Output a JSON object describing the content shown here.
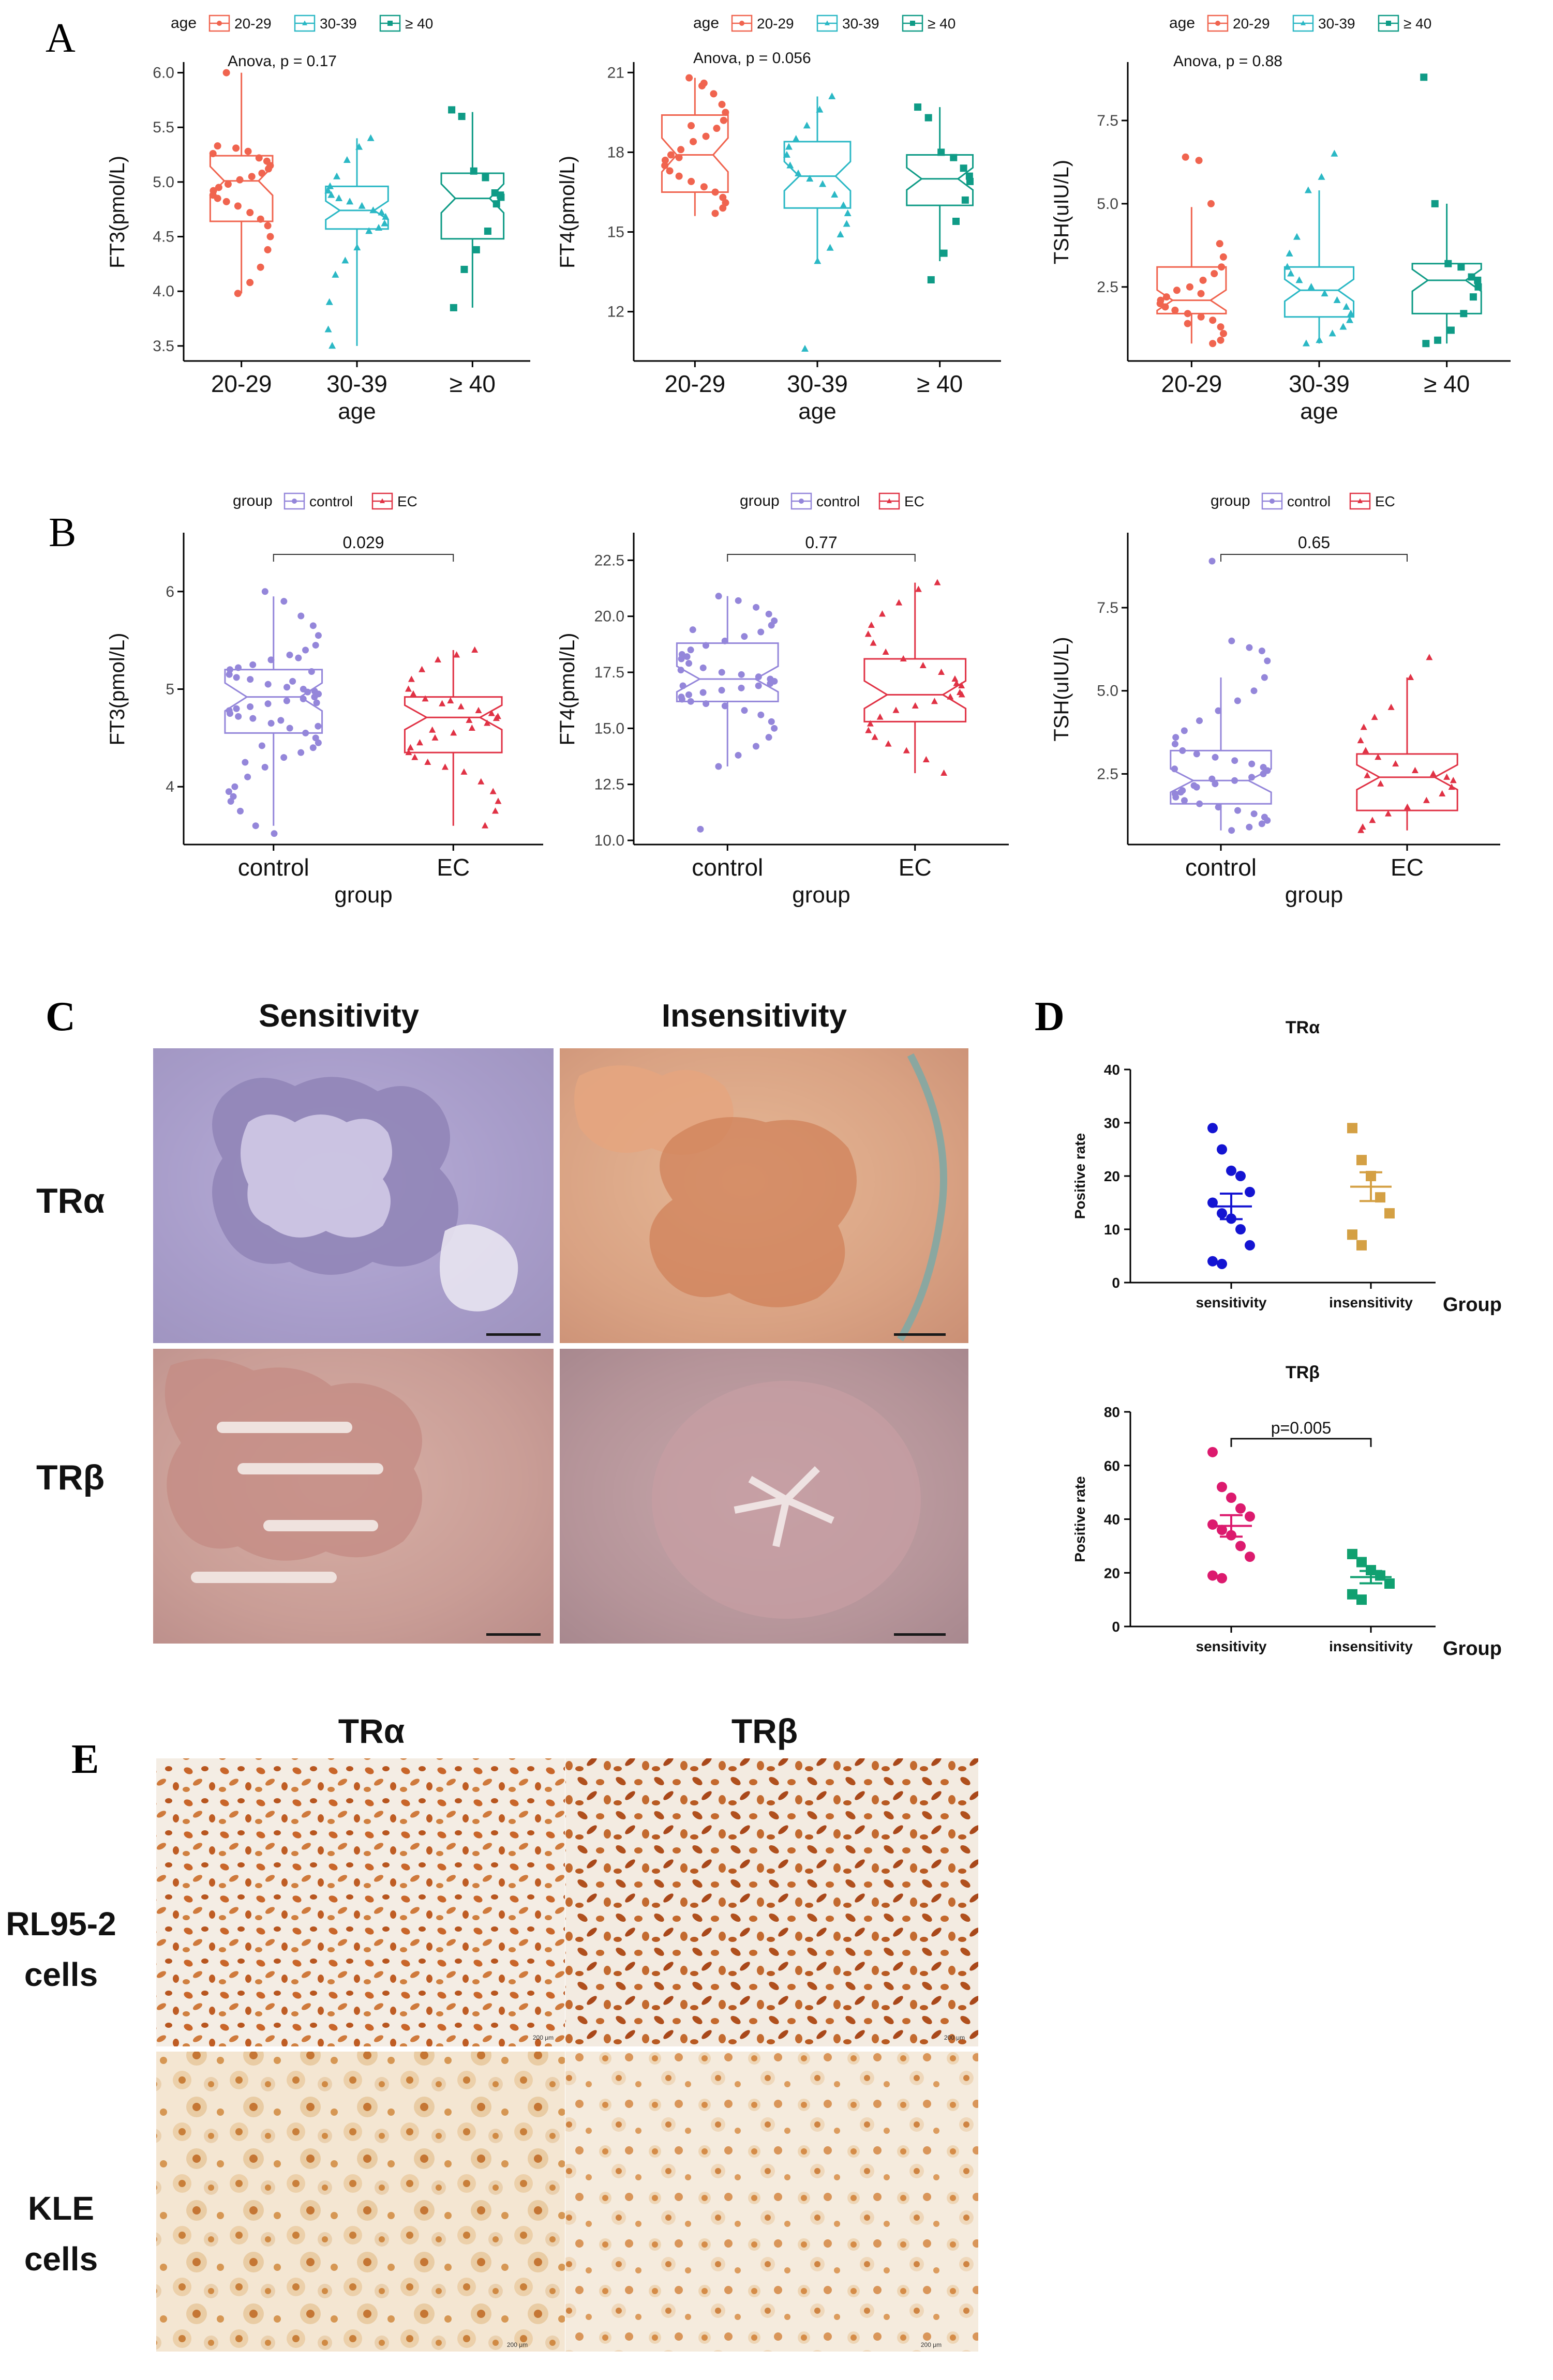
{
  "panels": {
    "A": "A",
    "B": "B",
    "C": "C",
    "D": "D",
    "E": "E"
  },
  "colors": {
    "age_20_29": "#F0644F",
    "age_30_39": "#2BB8C5",
    "age_ge40": "#0F9B86",
    "control": "#9486DA",
    "ec": "#E03245",
    "sensitivity_tra": "#1414D2",
    "insensitivity_tra": "#D4A044",
    "sensitivity_trb": "#DC1A6E",
    "insensitivity_trb": "#10A070"
  },
  "chart_data": [
    {
      "id": "A1",
      "type": "box",
      "legend_title": "age",
      "legend": [
        "20-29",
        "30-39",
        "≥ 40"
      ],
      "annotation": "Anova, p = 0.17",
      "categories": [
        "20-29",
        "30-39",
        "≥ 40"
      ],
      "xlabel": "age",
      "ylabel": "FT3(pmol/L)",
      "ylim": [
        3.4,
        6.05
      ],
      "yticks": [
        "3.5",
        "4.0",
        "4.5",
        "5.0",
        "5.5",
        "6.0"
      ],
      "boxes": [
        {
          "min": 3.98,
          "q1": 4.64,
          "median": 5.01,
          "q3": 5.24,
          "max": 6.0
        },
        {
          "min": 3.5,
          "q1": 4.57,
          "median": 4.74,
          "q3": 4.96,
          "max": 5.4
        },
        {
          "min": 3.85,
          "q1": 4.48,
          "median": 4.85,
          "q3": 5.08,
          "max": 5.64
        }
      ],
      "points": [
        [
          5.31,
          5.28,
          5.22,
          5.19,
          5.15,
          5.12,
          5.08,
          5.05,
          5.02,
          4.98,
          4.95,
          4.92,
          4.88,
          4.85,
          4.82,
          4.78,
          4.72,
          4.66,
          4.6,
          4.5,
          4.38,
          4.22,
          4.08,
          3.98,
          6.0,
          5.33,
          5.26,
          4.92
        ],
        [
          5.4,
          5.32,
          5.2,
          5.05,
          4.96,
          4.92,
          4.88,
          4.85,
          4.82,
          4.78,
          4.74,
          4.72,
          4.68,
          4.62,
          4.58,
          4.55,
          4.4,
          4.28,
          4.15,
          3.9,
          3.65,
          3.5
        ],
        [
          5.66,
          5.6,
          5.1,
          5.04,
          4.9,
          4.88,
          4.86,
          4.8,
          4.55,
          4.38,
          4.2,
          3.85
        ]
      ]
    },
    {
      "id": "A2",
      "type": "box",
      "legend_title": "age",
      "legend": [
        "20-29",
        "30-39",
        "≥ 40"
      ],
      "annotation": "Anova, p = 0.056",
      "categories": [
        "20-29",
        "30-39",
        "≥ 40"
      ],
      "xlabel": "age",
      "ylabel": "FT4(pmol/L)",
      "ylim": [
        10.3,
        21.2
      ],
      "yticks": [
        "12",
        "15",
        "18",
        "21"
      ],
      "boxes": [
        {
          "min": 15.6,
          "q1": 16.5,
          "median": 17.9,
          "q3": 19.4,
          "max": 20.8
        },
        {
          "min": 13.8,
          "q1": 15.9,
          "median": 17.1,
          "q3": 18.4,
          "max": 20.1
        },
        {
          "min": 13.9,
          "q1": 16.0,
          "median": 17.0,
          "q3": 17.9,
          "max": 19.7
        }
      ],
      "points": [
        [
          20.8,
          20.5,
          20.2,
          19.8,
          19.5,
          19.2,
          18.9,
          18.6,
          18.4,
          18.1,
          17.9,
          17.7,
          17.5,
          17.3,
          17.1,
          16.9,
          16.7,
          16.5,
          16.3,
          16.1,
          15.9,
          15.7,
          20.6,
          19.0,
          17.8
        ],
        [
          20.1,
          19.6,
          19.0,
          18.5,
          18.2,
          17.9,
          17.5,
          17.2,
          17.0,
          16.8,
          16.4,
          16.0,
          15.7,
          15.3,
          14.9,
          14.4,
          13.9,
          10.6
        ],
        [
          19.7,
          19.3,
          18.0,
          17.8,
          17.4,
          17.1,
          16.9,
          16.2,
          15.4,
          14.2,
          13.2
        ]
      ]
    },
    {
      "id": "A3",
      "type": "box",
      "legend_title": "age",
      "legend": [
        "20-29",
        "30-39",
        "≥ 40"
      ],
      "annotation": "Anova, p = 0.88",
      "categories": [
        "20-29",
        "30-39",
        "≥ 40"
      ],
      "xlabel": "age",
      "ylabel": "TSH(uIU/L)",
      "ylim": [
        0.4,
        9.1
      ],
      "yticks": [
        "2.5",
        "5.0",
        "7.5"
      ],
      "boxes": [
        {
          "min": 0.8,
          "q1": 1.7,
          "median": 2.1,
          "q3": 3.1,
          "max": 4.9
        },
        {
          "min": 0.8,
          "q1": 1.6,
          "median": 2.4,
          "q3": 3.1,
          "max": 5.4
        },
        {
          "min": 0.8,
          "q1": 1.7,
          "median": 2.7,
          "q3": 3.2,
          "max": 5.0
        }
      ],
      "points": [
        [
          6.4,
          6.3,
          5.0,
          3.8,
          3.4,
          3.1,
          2.9,
          2.7,
          2.5,
          2.4,
          2.2,
          2.1,
          2.0,
          1.9,
          1.8,
          1.7,
          1.6,
          1.5,
          1.3,
          1.1,
          0.9,
          0.8,
          2.3,
          1.4
        ],
        [
          6.5,
          5.8,
          5.4,
          4.0,
          3.5,
          3.1,
          2.9,
          2.7,
          2.5,
          2.3,
          2.1,
          1.9,
          1.7,
          1.5,
          1.3,
          1.1,
          0.9,
          0.8
        ],
        [
          8.8,
          5.0,
          3.2,
          3.1,
          2.8,
          2.7,
          2.5,
          2.2,
          1.7,
          1.2,
          0.9,
          0.8
        ]
      ]
    },
    {
      "id": "B1",
      "type": "box",
      "legend_title": "group",
      "legend": [
        "control",
        "EC"
      ],
      "annotation": "0.029",
      "categories": [
        "control",
        "EC"
      ],
      "xlabel": "group",
      "ylabel": "FT3(pmol/L)",
      "ylim": [
        3.45,
        6.55
      ],
      "yticks": [
        "4",
        "5",
        "6"
      ],
      "boxes": [
        {
          "min": 3.6,
          "q1": 4.55,
          "median": 4.92,
          "q3": 5.2,
          "max": 5.95
        },
        {
          "min": 3.6,
          "q1": 4.35,
          "median": 4.71,
          "q3": 4.92,
          "max": 5.4
        }
      ],
      "points": [
        [
          6.0,
          5.9,
          5.75,
          5.65,
          5.55,
          5.45,
          5.4,
          5.35,
          5.3,
          5.25,
          5.22,
          5.2,
          5.15,
          5.12,
          5.1,
          5.05,
          5.02,
          5.0,
          4.98,
          4.95,
          4.92,
          4.9,
          4.88,
          4.85,
          4.82,
          4.8,
          4.78,
          4.75,
          4.72,
          4.7,
          4.65,
          4.6,
          4.55,
          4.5,
          4.45,
          4.4,
          4.35,
          4.3,
          4.2,
          4.1,
          4.0,
          3.95,
          3.85,
          3.75,
          3.6,
          3.52,
          5.08,
          4.97,
          4.86,
          4.62,
          5.18,
          5.32,
          4.68,
          4.42,
          4.25,
          3.9
        ],
        [
          5.4,
          5.35,
          5.3,
          5.2,
          5.1,
          5.0,
          4.95,
          4.9,
          4.85,
          4.82,
          4.78,
          4.75,
          4.72,
          4.7,
          4.65,
          4.6,
          4.55,
          4.5,
          4.45,
          4.4,
          4.35,
          4.3,
          4.25,
          4.2,
          4.15,
          4.05,
          3.95,
          3.85,
          3.75,
          3.6,
          4.68,
          4.88,
          4.58
        ]
      ]
    },
    {
      "id": "B2",
      "type": "box",
      "legend_title": "group",
      "legend": [
        "control",
        "EC"
      ],
      "annotation": "0.77",
      "categories": [
        "control",
        "EC"
      ],
      "xlabel": "group",
      "ylabel": "FT4(pmol/L)",
      "ylim": [
        10.0,
        23.5
      ],
      "yticks": [
        "10.0",
        "12.5",
        "15.0",
        "17.5",
        "20.0",
        "22.5"
      ],
      "boxes": [
        {
          "min": 13.3,
          "q1": 16.2,
          "median": 17.2,
          "q3": 18.8,
          "max": 20.9
        },
        {
          "min": 13.0,
          "q1": 15.3,
          "median": 16.5,
          "q3": 18.1,
          "max": 21.5
        }
      ],
      "points": [
        [
          20.9,
          20.7,
          20.4,
          20.1,
          19.8,
          19.6,
          19.3,
          19.1,
          18.9,
          18.7,
          18.5,
          18.3,
          18.1,
          17.9,
          17.7,
          17.5,
          17.4,
          17.3,
          17.2,
          17.1,
          17.0,
          16.9,
          16.8,
          16.7,
          16.6,
          16.5,
          16.4,
          16.3,
          16.2,
          16.1,
          16.0,
          15.8,
          15.6,
          15.3,
          15.0,
          14.6,
          14.2,
          13.8,
          13.3,
          10.5,
          18.2,
          17.6,
          16.9,
          19.4
        ],
        [
          21.5,
          21.2,
          20.6,
          20.1,
          19.6,
          19.2,
          18.8,
          18.4,
          18.1,
          17.8,
          17.5,
          17.2,
          16.9,
          16.6,
          16.4,
          16.2,
          16.0,
          15.8,
          15.5,
          15.2,
          14.9,
          14.6,
          14.3,
          14.0,
          13.6,
          13.0,
          17.0,
          16.5
        ]
      ]
    },
    {
      "id": "B3",
      "type": "box",
      "legend_title": "group",
      "legend": [
        "control",
        "EC"
      ],
      "annotation": "0.65",
      "categories": [
        "control",
        "EC"
      ],
      "xlabel": "group",
      "ylabel": "TSH(uIU/L)",
      "ylim": [
        0.5,
        9.6
      ],
      "yticks": [
        "2.5",
        "5.0",
        "7.5"
      ],
      "boxes": [
        {
          "min": 0.8,
          "q1": 1.6,
          "median": 2.3,
          "q3": 3.2,
          "max": 5.4
        },
        {
          "min": 0.8,
          "q1": 1.4,
          "median": 2.4,
          "q3": 3.1,
          "max": 5.4
        }
      ],
      "points": [
        [
          8.9,
          6.5,
          6.3,
          6.2,
          5.9,
          5.4,
          5.0,
          4.7,
          4.4,
          4.1,
          3.8,
          3.6,
          3.4,
          3.2,
          3.1,
          3.0,
          2.9,
          2.8,
          2.7,
          2.6,
          2.5,
          2.4,
          2.3,
          2.2,
          2.1,
          2.0,
          1.9,
          1.8,
          1.7,
          1.6,
          1.5,
          1.4,
          1.3,
          1.2,
          1.1,
          1.0,
          0.9,
          0.8,
          2.35,
          2.15,
          1.95,
          2.65
        ],
        [
          6.0,
          5.4,
          4.5,
          4.2,
          3.9,
          3.5,
          3.2,
          3.0,
          2.8,
          2.6,
          2.5,
          2.4,
          2.3,
          2.1,
          1.9,
          1.7,
          1.5,
          1.3,
          1.1,
          0.9,
          0.8,
          2.45,
          2.2
        ]
      ]
    },
    {
      "id": "D1",
      "type": "scatter",
      "title": "TRα",
      "categories": [
        "sensitivity",
        "insensitivity"
      ],
      "xlabel": "Group",
      "ylabel": "Positive rate",
      "ylim": [
        0,
        40
      ],
      "yticks": [
        "0",
        "10",
        "20",
        "30",
        "40"
      ],
      "points": [
        [
          29,
          25,
          21,
          20,
          17,
          15,
          13,
          12,
          10,
          7,
          4,
          3.5
        ],
        [
          29,
          23,
          20,
          16,
          13,
          9,
          7
        ]
      ],
      "mean": [
        14.3,
        18.0
      ],
      "sem": [
        2.4,
        2.7
      ]
    },
    {
      "id": "D2",
      "type": "scatter",
      "title": "TRβ",
      "categories": [
        "sensitivity",
        "insensitivity"
      ],
      "xlabel": "Group",
      "ylabel": "Positive rate",
      "ylim": [
        0,
        80
      ],
      "yticks": [
        "0",
        "20",
        "40",
        "60",
        "80"
      ],
      "annotation": "p=0.005",
      "points": [
        [
          65,
          52,
          48,
          44,
          41,
          38,
          36,
          34,
          30,
          26,
          19,
          18
        ],
        [
          27,
          24,
          21,
          19,
          16,
          12,
          10
        ]
      ],
      "mean": [
        37.5,
        18.4
      ],
      "sem": [
        4.0,
        2.3
      ]
    }
  ],
  "panel_c": {
    "col_headers": [
      "Sensitivity",
      "Insensitivity"
    ],
    "row_labels": [
      "TRα",
      "TRβ"
    ]
  },
  "panel_e": {
    "col_headers": [
      "TRα",
      "TRβ"
    ],
    "row_labels": [
      [
        "RL95-2",
        "cells"
      ],
      [
        "KLE",
        "cells"
      ]
    ],
    "scale_bar_text": "200 μm"
  }
}
